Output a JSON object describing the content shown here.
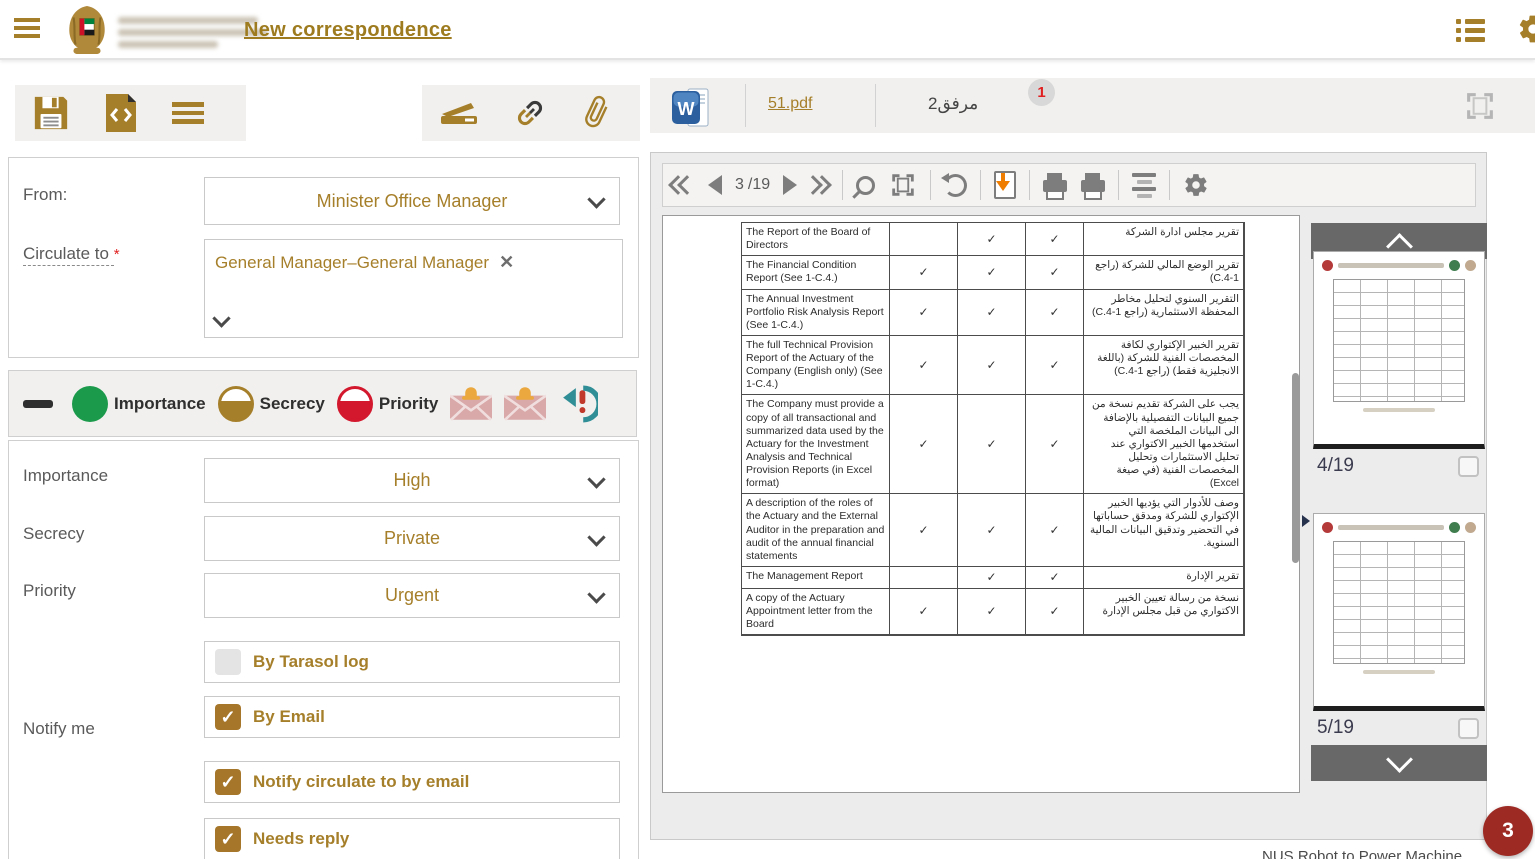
{
  "header": {
    "title": "New correspondence"
  },
  "colors": {
    "accent_gold": "#a67f2a",
    "importance_green": "#1c9a4c",
    "priority_red": "#d3172d",
    "badge_red": "#e02020",
    "notification_circle_red": "#9e2a24",
    "transfer_teal": "#2f8e96",
    "download_orange": "#ef7d00"
  },
  "icons": {
    "check_glyph": "✓",
    "remove_glyph": "✕",
    "word_letter": "W",
    "names": [
      "hamburger-menu-icon",
      "uae-emblem",
      "list-icon",
      "gear-icon",
      "save-icon",
      "file-code-icon",
      "menu-icon",
      "scan-icon",
      "link-icon",
      "paperclip-icon",
      "minus-icon",
      "envelope-bell-icon",
      "transfer-alert-icon",
      "word-file-icon",
      "fullscreen-icon",
      "first-page-icon",
      "prev-page-icon",
      "next-page-icon",
      "last-page-icon",
      "zoom-icon",
      "fit-page-icon",
      "rotate-icon",
      "download-icon",
      "print-icon",
      "layout-lines-icon",
      "chevron-down-icon"
    ]
  },
  "left_panel": {
    "attachments_badge": "1",
    "form": {
      "from_label": "From:",
      "from_value": "Minister Office Manager",
      "circulate_label": "Circulate to ",
      "required_mark": "*",
      "circulate_chip": "General Manager–General Manager"
    },
    "classification_bar": {
      "importance_label": "Importance",
      "secrecy_label": "Secrecy",
      "priority_label": "Priority"
    },
    "details_form": {
      "importance_label": "Importance",
      "importance_value": "High",
      "secrecy_label": "Secrecy",
      "secrecy_value": "Private",
      "priority_label": "Priority",
      "priority_value": "Urgent",
      "notify_label": "Notify me",
      "checkboxes": [
        {
          "label": "By Tarasol log",
          "checked": false
        },
        {
          "label": "By Email",
          "checked": true
        },
        {
          "label": "Notify circulate to by email",
          "checked": true
        },
        {
          "label": "Needs reply",
          "checked": true
        }
      ]
    }
  },
  "viewer": {
    "file_name": "51.pdf",
    "attachment_label": "مرفق2",
    "pager": {
      "current": "3",
      "total": "/19"
    },
    "thumbnails": [
      {
        "label": "4/19"
      },
      {
        "label": "5/19"
      }
    ],
    "notification_count": "3",
    "footer_clipped": "NUS Robot to Power Machine"
  },
  "document_page": {
    "rows": [
      {
        "en": "The Report of the Board of Directors",
        "checks": [
          false,
          true,
          true
        ],
        "ar": "تقرير مجلس ادارة الشركة"
      },
      {
        "en": "The Financial Condition Report (See 1-C.4.)",
        "checks": [
          true,
          true,
          true
        ],
        "ar": "تقرير الوضع المالي للشركة (راجع 1-C.4)"
      },
      {
        "en": "The Annual Investment Portfolio Risk Analysis Report (See 1-C.4.)",
        "checks": [
          true,
          true,
          true
        ],
        "ar": "التقرير السنوي لتحليل مخاطر المحفظة الاستثمارية (راجع 1-C.4)"
      },
      {
        "en": "The full Technical Provision Report of the Actuary of the Company (English only) (See 1-C.4.)",
        "checks": [
          true,
          true,
          true
        ],
        "ar": "تقرير الخبير الإكتواري لكافة المخصصات الفنية للشركة (باللغة الانجليزية فقط) (راجع 1-C.4)"
      },
      {
        "en": "The Company must provide a copy of all transactional and summarized data used by the Actuary for the Investment Analysis and Technical Provision Reports (in Excel format)",
        "checks": [
          true,
          true,
          true
        ],
        "ar": "يجب على الشركة تقديم نسخة من جميع البيانات التفصيلية بالإضافة الى البيانات الملخصة التي استخدمها الخبير الاكتواري عند تحليل الاستثمارات وتحليل المخصصات الفنية (في صيغة Excel)"
      },
      {
        "en": "A description of the roles of the Actuary and the External Auditor in the preparation and audit of the annual financial statements",
        "checks": [
          true,
          true,
          true
        ],
        "ar": "وصف للأدوار التي يؤديها الخبير الإكتواري للشركة ومدقق حساباتها في التحضير وتدقيق البيانات المالية السنوية."
      },
      {
        "en": "The Management Report",
        "checks": [
          false,
          true,
          true
        ],
        "ar": "تقرير الإدارة"
      },
      {
        "en": "A copy of the Actuary Appointment letter from the Board",
        "checks": [
          true,
          true,
          true
        ],
        "ar": "نسخة من رسالة تعيين الخبير الاكتواري من قبل مجلس الإدارة"
      }
    ]
  }
}
